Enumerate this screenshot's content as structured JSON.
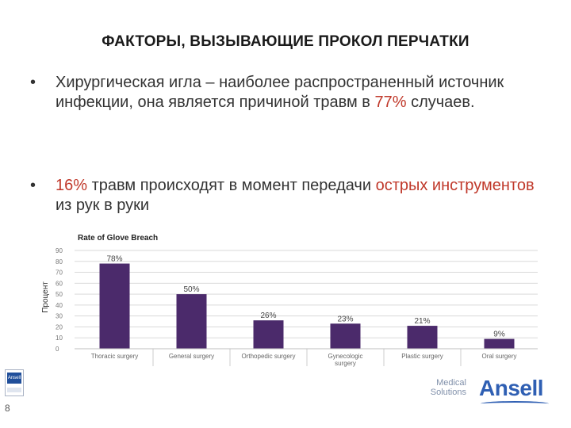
{
  "slide": {
    "title": "ФАКТОРЫ, ВЫЗЫВАЮЩИЕ ПРОКОЛ ПЕРЧАТКИ",
    "bullets": [
      {
        "marker": "•",
        "part1": "Хирургическая игла – наиболее распространенный источник инфекции, она является причиной травм в ",
        "part_red": "77%",
        "part2": " случаев."
      },
      {
        "marker": "•",
        "part_red": "16%",
        "part1": " травм происходят в момент передачи ",
        "part_red2": "острых инструментов",
        "part2": " из рук в руки"
      }
    ],
    "slide_number": "8",
    "brand": "Ansell",
    "brand_tagline_1": "Medical",
    "brand_tagline_2": "Solutions",
    "small_logo_text": "Ansell"
  },
  "chart_data": {
    "type": "bar",
    "title": "Rate of Glove Breach",
    "xlabel": "",
    "ylabel": "Процент",
    "categories": [
      "Thoracic surgery",
      "General surgery",
      "Orthopedic surgery",
      "Gynecologic surgery",
      "Plastic surgery",
      "Oral surgery"
    ],
    "category_lines": [
      [
        "Thoracic surgery"
      ],
      [
        "General surgery"
      ],
      [
        "Orthopedic surgery"
      ],
      [
        "Gynecologic",
        "surgery"
      ],
      [
        "Plastic surgery"
      ],
      [
        "Oral surgery"
      ]
    ],
    "values": [
      78,
      50,
      26,
      23,
      21,
      9
    ],
    "labels": [
      "78%",
      "50%",
      "26%",
      "23%",
      "21%",
      "9%"
    ],
    "yticks": [
      "0",
      "10",
      "20",
      "30",
      "40",
      "50",
      "60",
      "70",
      "80",
      "90"
    ],
    "ylim": [
      0,
      90
    ],
    "grid": true,
    "bar_color": "#4b2a6b"
  }
}
